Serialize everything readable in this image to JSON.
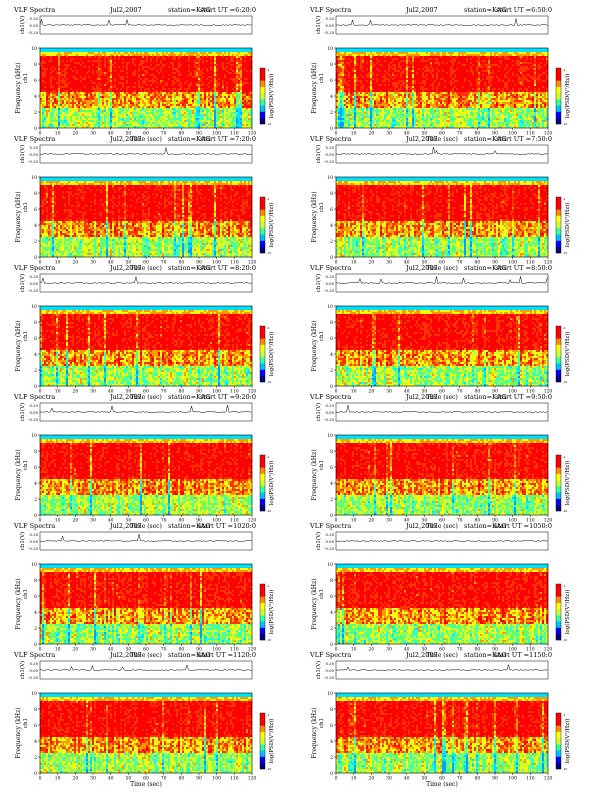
{
  "figure": {
    "columns": 2,
    "rows": 6
  },
  "common": {
    "title_label": "VLF Spectra",
    "date": "Jul2,2007",
    "station": "station=KAG",
    "ch_label": "ch1(V)",
    "ylabel": "Frequency (kHz)",
    "ylabel_ch": "ch1",
    "xlabel": "Time (sec)",
    "colorbar_label": "log(PSD(V²/Hz))",
    "colorbar_colors": [
      "#00007f",
      "#0000ff",
      "#00bfff",
      "#33ff99",
      "#ccff33",
      "#ffff00",
      "#ff8c00",
      "#ff0000",
      "#ff0000"
    ],
    "colorscale_ticks": [
      "-2",
      "-3",
      "-4",
      "-5",
      "-6",
      "-7",
      "-8",
      "-9",
      "-10"
    ],
    "waveform_ticks": [
      "0.20",
      "0.00",
      "-0.20"
    ]
  },
  "chart_data": [
    {
      "type": "heatmap",
      "title": "start UT =6:20:0",
      "start_ut": "=6:20:0",
      "xlabel": "Time (sec)",
      "ylabel": "Frequency (kHz)",
      "xlim": [
        0,
        120
      ],
      "ylim": [
        0,
        10
      ],
      "xticks": [
        0,
        10,
        20,
        30,
        40,
        50,
        60,
        70,
        80,
        90,
        100,
        110,
        120
      ],
      "yticks": [
        0,
        2,
        4,
        6,
        8,
        10
      ]
    },
    {
      "type": "heatmap",
      "title": "start UT =6:50:0",
      "start_ut": "=6:50:0",
      "xlabel": "Time (sec)",
      "ylabel": "Frequency (kHz)",
      "xlim": [
        0,
        120
      ],
      "ylim": [
        0,
        10
      ],
      "xticks": [
        0,
        10,
        20,
        30,
        40,
        50,
        60,
        70,
        80,
        90,
        100,
        110,
        120
      ],
      "yticks": [
        0,
        2,
        4,
        6,
        8,
        10
      ]
    },
    {
      "type": "heatmap",
      "title": "start UT =7:20:0",
      "start_ut": "=7:20:0",
      "xlabel": "Time (sec)",
      "ylabel": "Frequency (kHz)",
      "xlim": [
        0,
        120
      ],
      "ylim": [
        0,
        10
      ],
      "xticks": [
        0,
        10,
        20,
        30,
        40,
        50,
        60,
        70,
        80,
        90,
        100,
        110,
        120
      ],
      "yticks": [
        0,
        2,
        4,
        6,
        8,
        10
      ]
    },
    {
      "type": "heatmap",
      "title": "start UT =7:50:0",
      "start_ut": "=7:50:0",
      "xlabel": "Time (sec)",
      "ylabel": "Frequency (kHz)",
      "xlim": [
        0,
        120
      ],
      "ylim": [
        0,
        10
      ],
      "xticks": [
        0,
        10,
        20,
        30,
        40,
        50,
        60,
        70,
        80,
        90,
        100,
        110,
        120
      ],
      "yticks": [
        0,
        2,
        4,
        6,
        8,
        10
      ]
    },
    {
      "type": "heatmap",
      "title": "start UT =8:20:0",
      "start_ut": "=8:20:0",
      "xlabel": "Time (sec)",
      "ylabel": "Frequency (kHz)",
      "xlim": [
        0,
        120
      ],
      "ylim": [
        0,
        10
      ],
      "xticks": [
        0,
        10,
        20,
        30,
        40,
        50,
        60,
        70,
        80,
        90,
        100,
        110,
        120
      ],
      "yticks": [
        0,
        2,
        4,
        6,
        8,
        10
      ]
    },
    {
      "type": "heatmap",
      "title": "start UT =8:50:0",
      "start_ut": "=8:50:0",
      "xlabel": "Time (sec)",
      "ylabel": "Frequency (kHz)",
      "xlim": [
        0,
        120
      ],
      "ylim": [
        0,
        10
      ],
      "xticks": [
        0,
        10,
        20,
        30,
        40,
        50,
        60,
        70,
        80,
        90,
        100,
        110,
        120
      ],
      "yticks": [
        0,
        2,
        4,
        6,
        8,
        10
      ]
    },
    {
      "type": "heatmap",
      "title": "start UT =9:20:0",
      "start_ut": "=9:20:0",
      "xlabel": "Time (sec)",
      "ylabel": "Frequency (kHz)",
      "xlim": [
        0,
        120
      ],
      "ylim": [
        0,
        10
      ],
      "xticks": [
        0,
        10,
        20,
        30,
        40,
        50,
        60,
        70,
        80,
        90,
        100,
        110,
        120
      ],
      "yticks": [
        0,
        2,
        4,
        6,
        8,
        10
      ]
    },
    {
      "type": "heatmap",
      "title": "start UT =9:50:0",
      "start_ut": "=9:50:0",
      "xlabel": "Time (sec)",
      "ylabel": "Frequency (kHz)",
      "xlim": [
        0,
        120
      ],
      "ylim": [
        0,
        10
      ],
      "xticks": [
        0,
        10,
        20,
        30,
        40,
        50,
        60,
        70,
        80,
        90,
        100,
        110,
        120
      ],
      "yticks": [
        0,
        2,
        4,
        6,
        8,
        10
      ]
    },
    {
      "type": "heatmap",
      "title": "start UT =1020:0",
      "start_ut": "=1020:0",
      "xlabel": "Time (sec)",
      "ylabel": "Frequency (kHz)",
      "xlim": [
        0,
        120
      ],
      "ylim": [
        0,
        10
      ],
      "xticks": [
        0,
        10,
        20,
        30,
        40,
        50,
        60,
        70,
        80,
        90,
        100,
        110,
        120
      ],
      "yticks": [
        0,
        2,
        4,
        6,
        8,
        10
      ]
    },
    {
      "type": "heatmap",
      "title": "start UT =1050:0",
      "start_ut": "=1050:0",
      "xlabel": "Time (sec)",
      "ylabel": "Frequency (kHz)",
      "xlim": [
        0,
        120
      ],
      "ylim": [
        0,
        10
      ],
      "xticks": [
        0,
        10,
        20,
        30,
        40,
        50,
        60,
        70,
        80,
        90,
        100,
        110,
        120
      ],
      "yticks": [
        0,
        2,
        4,
        6,
        8,
        10
      ]
    },
    {
      "type": "heatmap",
      "title": "start UT =1120:0",
      "start_ut": "=1120:0",
      "xlabel": "Time (sec)",
      "ylabel": "Frequency (kHz)",
      "xlim": [
        0,
        120
      ],
      "ylim": [
        0,
        10
      ],
      "xticks": [
        0,
        10,
        20,
        30,
        40,
        50,
        60,
        70,
        80,
        90,
        100,
        110,
        120
      ],
      "yticks": [
        0,
        2,
        4,
        6,
        8,
        10
      ]
    },
    {
      "type": "heatmap",
      "title": "start UT =1150:0",
      "start_ut": "=1150:0",
      "xlabel": "Time (sec)",
      "ylabel": "Frequency (kHz)",
      "xlim": [
        0,
        120
      ],
      "ylim": [
        0,
        10
      ],
      "xticks": [
        0,
        10,
        20,
        30,
        40,
        50,
        60,
        70,
        80,
        90,
        100,
        110,
        120
      ],
      "yticks": [
        0,
        2,
        4,
        6,
        8,
        10
      ]
    }
  ]
}
